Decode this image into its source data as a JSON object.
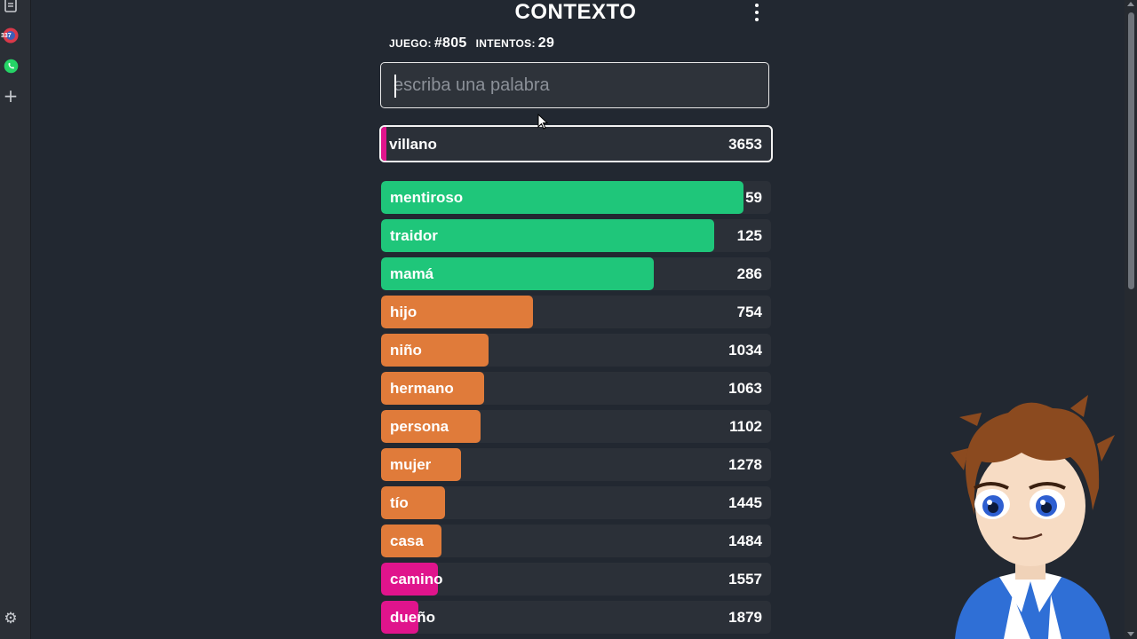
{
  "sidebar": {
    "badge_count": "337",
    "icons": [
      "book-icon",
      "notification-badge-icon",
      "whatsapp-icon",
      "plus-icon",
      "gear-icon"
    ]
  },
  "header": {
    "title": "CONTEXTO",
    "game_label": "JUEGO:",
    "game_number": "#805",
    "attempts_label": "INTENTOS:",
    "attempts_count": "29"
  },
  "input": {
    "placeholder": "escriba una palabra",
    "value": ""
  },
  "last_guess": {
    "word": "villano",
    "rank": "3653",
    "color": "#e0148c"
  },
  "guesses": [
    {
      "word": "mentiroso",
      "rank": "59",
      "fill": 0.93,
      "color": "#1fc67a"
    },
    {
      "word": "traidor",
      "rank": "125",
      "fill": 0.855,
      "color": "#1fc67a"
    },
    {
      "word": "mamá",
      "rank": "286",
      "fill": 0.7,
      "color": "#1fc67a"
    },
    {
      "word": "hijo",
      "rank": "754",
      "fill": 0.39,
      "color": "#e07b3a"
    },
    {
      "word": "niño",
      "rank": "1034",
      "fill": 0.275,
      "color": "#e07b3a"
    },
    {
      "word": "hermano",
      "rank": "1063",
      "fill": 0.265,
      "color": "#e07b3a"
    },
    {
      "word": "persona",
      "rank": "1102",
      "fill": 0.255,
      "color": "#e07b3a"
    },
    {
      "word": "mujer",
      "rank": "1278",
      "fill": 0.205,
      "color": "#e07b3a"
    },
    {
      "word": "tío",
      "rank": "1445",
      "fill": 0.165,
      "color": "#e07b3a"
    },
    {
      "word": "casa",
      "rank": "1484",
      "fill": 0.155,
      "color": "#e07b3a"
    },
    {
      "word": "camino",
      "rank": "1557",
      "fill": 0.145,
      "color": "#e0148c"
    },
    {
      "word": "dueño",
      "rank": "1879",
      "fill": 0.095,
      "color": "#e0148c"
    }
  ]
}
